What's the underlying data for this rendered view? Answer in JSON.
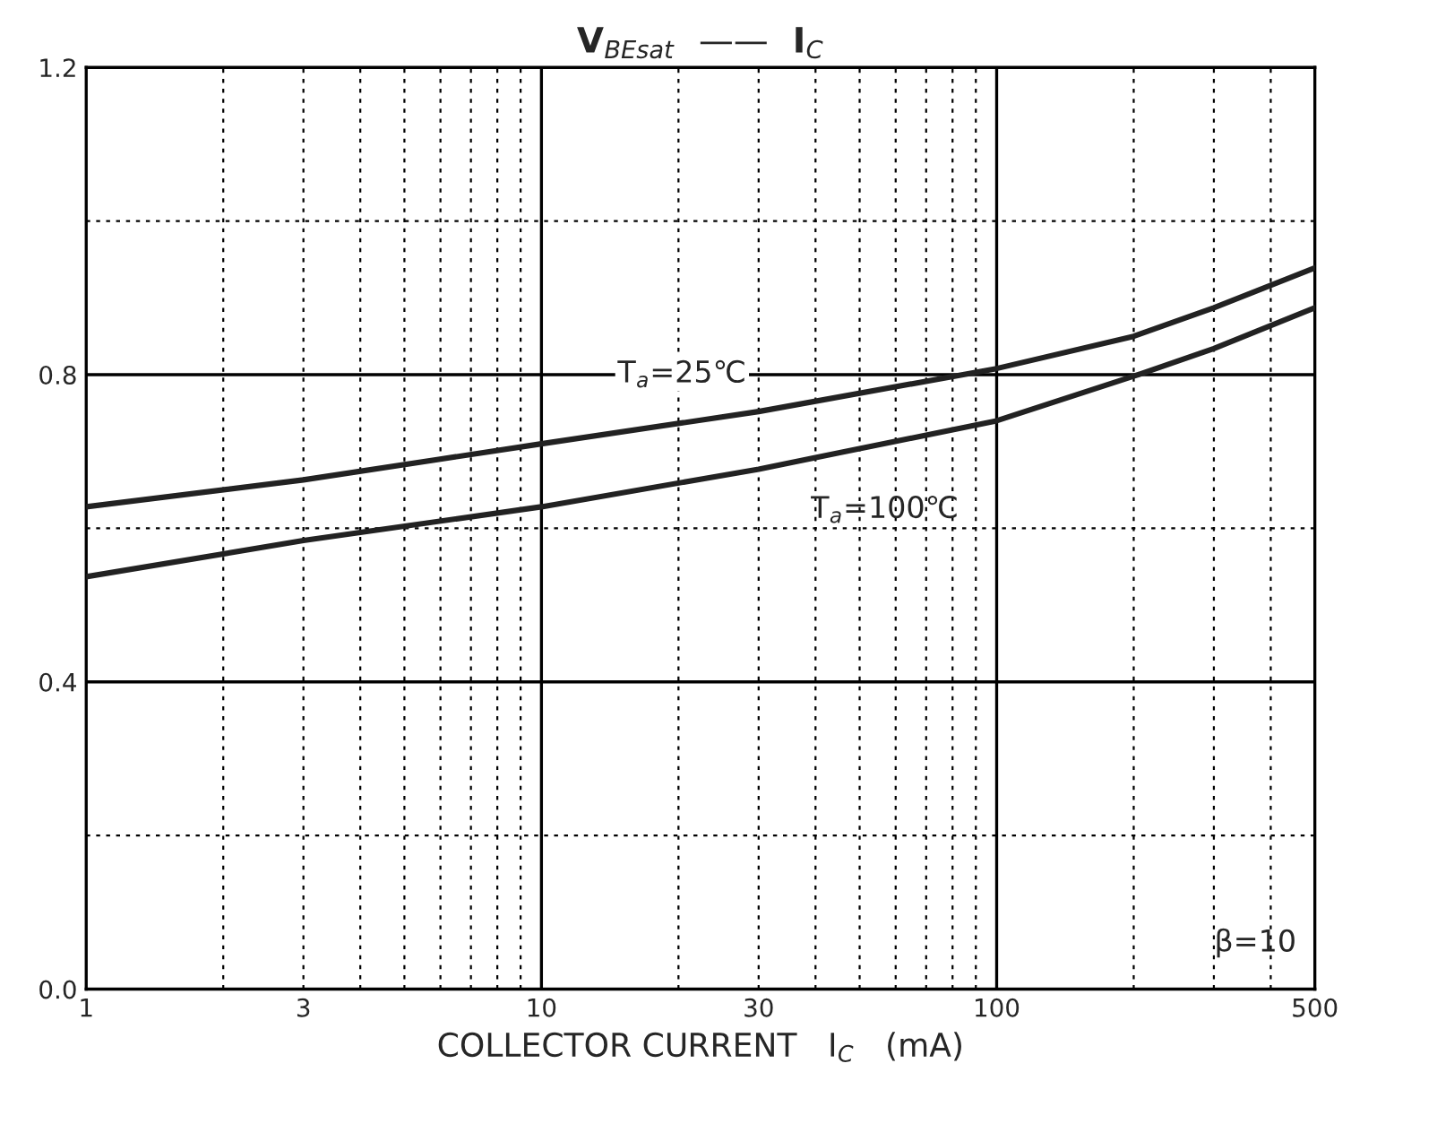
{
  "chart_data": {
    "type": "line",
    "title": "V$_{BEsat}$  ——  I$_{C}$",
    "xlabel": "COLLECTOR CURRENT   I$_{C}$   (mA)",
    "log": "x",
    "xlim": [
      1,
      500
    ],
    "xticks": [
      1,
      3,
      10,
      30,
      100,
      500
    ],
    "ylim": [
      0,
      1.2
    ],
    "yticks": [
      {
        "value": 0,
        "label": "0.0"
      },
      0.4,
      0.8,
      1.2
    ],
    "grid": true,
    "line_style": "solid",
    "marker": "none",
    "series": [
      {
        "color": "#222222",
        "x": [
          1,
          3,
          10,
          30,
          100,
          200,
          300,
          500
        ],
        "values": [
          0.628,
          0.663,
          0.71,
          0.752,
          0.808,
          0.85,
          0.887,
          0.939
        ]
      },
      {
        "color": "#222222",
        "x": [
          1,
          3,
          10,
          30,
          100,
          200,
          300,
          500
        ],
        "values": [
          0.537,
          0.584,
          0.628,
          0.677,
          0.74,
          0.798,
          0.834,
          0.887
        ]
      }
    ],
    "annotations": [
      "T$_{a}$=25℃",
      "T$_{a}$=100℃",
      "β=10"
    ]
  }
}
